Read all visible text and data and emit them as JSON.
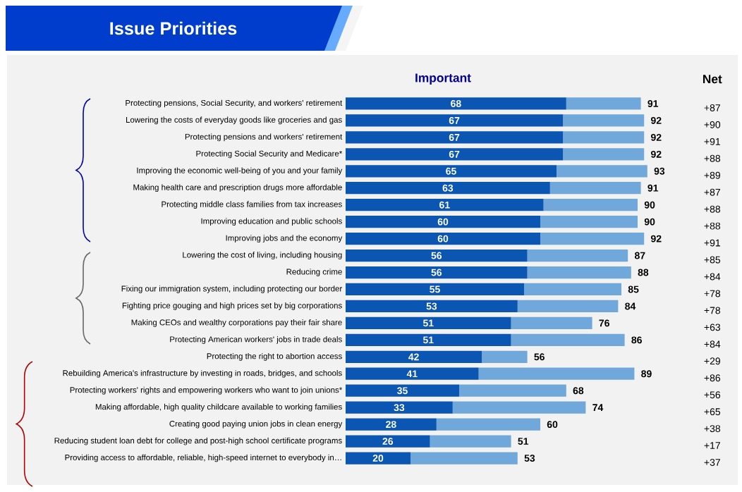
{
  "chart_data": {
    "type": "bar",
    "title": "Issue Priorities",
    "subtitle": "Important",
    "orientation": "horizontal",
    "stacked": true,
    "tick_labels": "y",
    "categories": [
      "Protecting pensions, Social Security, and workers' retirement",
      "Lowering the costs of everyday goods like groceries and gas",
      "Protecting pensions and workers' retirement",
      "Protecting Social Security and Medicare*",
      "Improving the economic well-being of you and your family",
      "Making health care and prescription drugs more affordable",
      "Protecting middle class families from tax increases",
      "Improving education and public schools",
      "Improving jobs and the economy",
      "Lowering the cost of living, including housing",
      "Reducing crime",
      "Fixing our immigration system, including protecting our border",
      "Fighting price gouging and high prices set by big corporations",
      "Making CEOs and wealthy corporations pay their fair share",
      "Protecting American workers' jobs in trade deals",
      "Protecting the right to abortion access",
      "Rebuilding America's infrastructure by investing in roads, bridges, and schools",
      "Protecting workers' rights and empowering workers who want to join unions*",
      "Making affordable, high quality childcare available to working families",
      "Creating good paying union jobs in clean energy",
      "Reducing student loan debt for college and post-high school certificate programs",
      "Providing access to affordable, reliable, high-speed internet to everybody in…"
    ],
    "series": [
      {
        "color": "#0b55b3",
        "values": [
          68,
          67,
          67,
          67,
          65,
          63,
          61,
          60,
          60,
          56,
          56,
          55,
          53,
          51,
          51,
          42,
          41,
          35,
          33,
          28,
          26,
          20
        ],
        "value_labels": [
          "68",
          "67",
          "67",
          "67",
          "65",
          "63",
          "61",
          "60",
          "60",
          "56",
          "56",
          "55",
          "53",
          "51",
          "51",
          "42",
          "41",
          "35",
          "33",
          "28",
          "26",
          "20"
        ]
      },
      {
        "color": "#70a8dc",
        "values": [
          23,
          25,
          25,
          25,
          28,
          28,
          29,
          30,
          32,
          31,
          32,
          30,
          31,
          25,
          35,
          14,
          48,
          33,
          41,
          32,
          25,
          33
        ]
      }
    ],
    "totals": [
      "91",
      "92",
      "92",
      "92",
      "93",
      "91",
      "90",
      "90",
      "92",
      "87",
      "88",
      "85",
      "84",
      "76",
      "86",
      "56",
      "89",
      "68",
      "74",
      "60",
      "51",
      "53"
    ],
    "annotations": [
      "Net",
      "+87",
      "+90",
      "+91",
      "+88",
      "+89",
      "+87",
      "+88",
      "+88",
      "+91",
      "+85",
      "+84",
      "+78",
      "+78",
      "+63",
      "+84",
      "+29",
      "+86",
      "+56",
      "+65",
      "+38",
      "+17",
      "+37"
    ]
  }
}
